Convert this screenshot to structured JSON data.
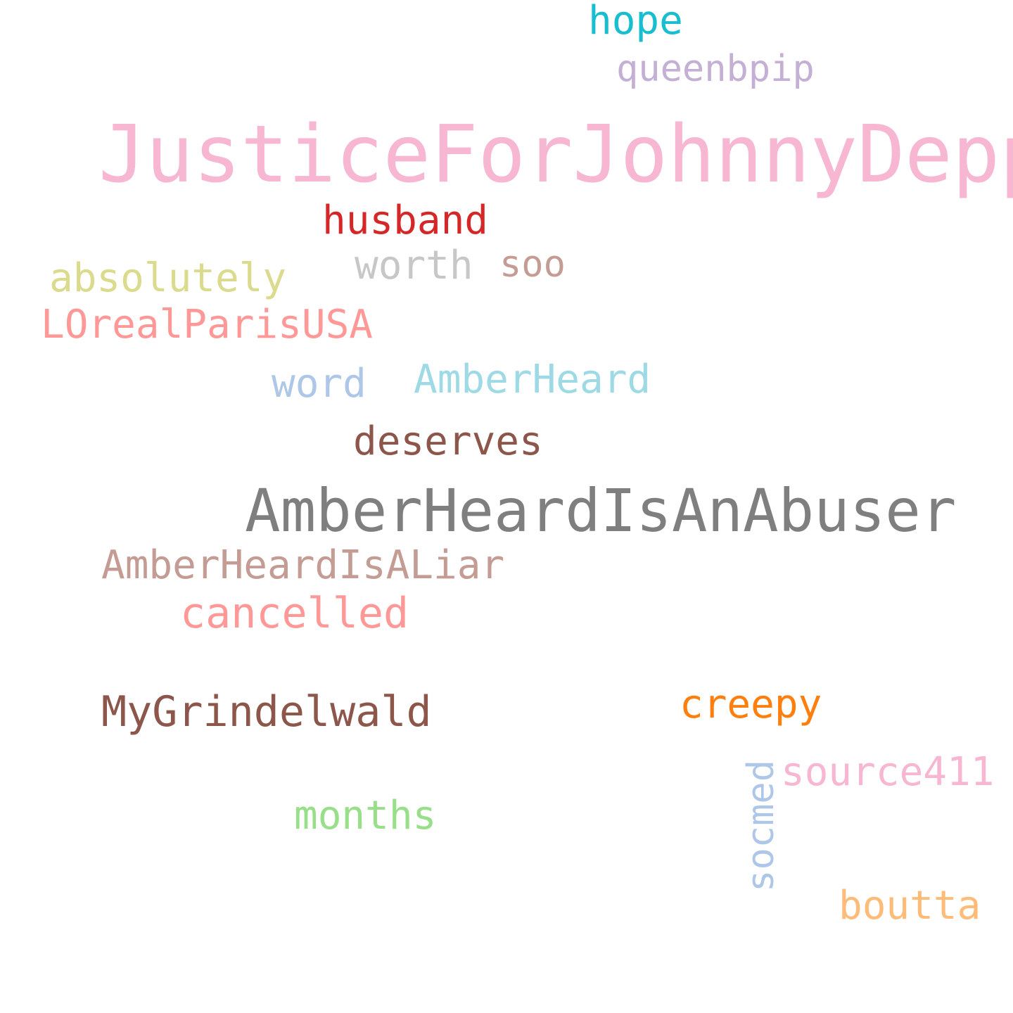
{
  "words": [
    {
      "text": "hope",
      "color": "#17becf"
    },
    {
      "text": "queenbpip",
      "color": "#c5b0d5"
    },
    {
      "text": "JusticeForJohnnyDepp",
      "color": "#f7b6d2"
    },
    {
      "text": "husband",
      "color": "#d62728"
    },
    {
      "text": "worth",
      "color": "#c7c7c7"
    },
    {
      "text": "soo",
      "color": "#c49c94"
    },
    {
      "text": "absolutely",
      "color": "#dbdb8d"
    },
    {
      "text": "LOrealParisUSA",
      "color": "#ff9896"
    },
    {
      "text": "word",
      "color": "#aec7e8"
    },
    {
      "text": "AmberHeard",
      "color": "#9edae5"
    },
    {
      "text": "deserves",
      "color": "#8c564b"
    },
    {
      "text": "AmberHeardIsAnAbuser",
      "color": "#7f7f7f"
    },
    {
      "text": "AmberHeardIsALiar",
      "color": "#c49c94"
    },
    {
      "text": "cancelled",
      "color": "#ff9896"
    },
    {
      "text": "creepy",
      "color": "#ff7f0e"
    },
    {
      "text": "MyGrindelwald",
      "color": "#8c564b"
    },
    {
      "text": "source411",
      "color": "#f7b6d2"
    },
    {
      "text": "socmed",
      "color": "#aec7e8"
    },
    {
      "text": "months",
      "color": "#98df8a"
    },
    {
      "text": "boutta",
      "color": "#ffbb78"
    }
  ]
}
